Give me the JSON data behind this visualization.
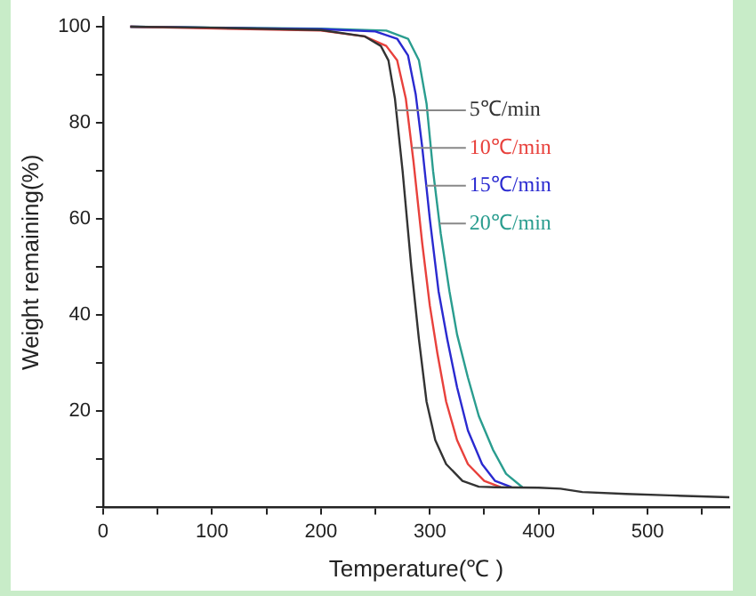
{
  "chart_data": {
    "type": "line",
    "xlabel": "Temperature(℃ )",
    "ylabel": "Weight remaining(%)",
    "xlim": [
      0,
      575
    ],
    "ylim": [
      0,
      102
    ],
    "xticks": [
      0,
      {
        "value": 50,
        "label": null
      },
      100,
      {
        "value": 150,
        "label": null
      },
      200,
      {
        "value": 250,
        "label": null
      },
      300,
      {
        "value": 350,
        "label": null
      },
      400,
      {
        "value": 450,
        "label": null
      },
      500,
      {
        "value": 550,
        "label": null
      }
    ],
    "yticks": [
      {
        "value": 0,
        "label": null
      },
      {
        "value": 10,
        "label": null
      },
      20,
      {
        "value": 30,
        "label": null
      },
      40,
      {
        "value": 50,
        "label": null
      },
      60,
      {
        "value": 70,
        "label": null
      },
      80,
      {
        "value": 90,
        "label": null
      },
      100
    ],
    "grid": false,
    "legend": false,
    "marker": "none",
    "line_style": "solid",
    "series": [
      {
        "name": "5℃/min",
        "color": "#333333",
        "x": [
          25,
          100,
          200,
          240,
          255,
          262,
          268,
          275,
          283,
          290,
          297,
          305,
          315,
          330,
          345,
          360,
          400,
          420,
          440,
          480,
          520,
          575
        ],
        "values": [
          100,
          99.8,
          99.3,
          98,
          96,
          93,
          85,
          70,
          50,
          35,
          22,
          14,
          9,
          5.5,
          4.3,
          4.2,
          4.1,
          3.9,
          3.2,
          2.8,
          2.5,
          2.1
        ]
      },
      {
        "name": "10℃/min",
        "color": "#e8413c",
        "x": [
          25,
          200,
          240,
          260,
          270,
          278,
          285,
          293,
          300,
          307,
          315,
          325,
          335,
          350,
          365
        ],
        "values": [
          100,
          99.2,
          98,
          96,
          93,
          85,
          72,
          55,
          42,
          32,
          22,
          14,
          9,
          5.5,
          4.2
        ]
      },
      {
        "name": "15℃/min",
        "color": "#2a2ad0",
        "x": [
          25,
          200,
          250,
          270,
          280,
          287,
          293,
          300,
          308,
          316,
          325,
          335,
          348,
          360,
          375
        ],
        "values": [
          100,
          99.5,
          99,
          97.5,
          94,
          86,
          75,
          60,
          45,
          35,
          25,
          16,
          9,
          5.5,
          4.2
        ]
      },
      {
        "name": "20℃/min",
        "color": "#2a9d8f",
        "x": [
          25,
          200,
          260,
          280,
          290,
          297,
          303,
          310,
          318,
          325,
          335,
          345,
          358,
          370,
          385
        ],
        "values": [
          100,
          99.6,
          99.2,
          97.5,
          93,
          84,
          70,
          57,
          45,
          36,
          27,
          19,
          12,
          7,
          4.2
        ]
      }
    ]
  }
}
